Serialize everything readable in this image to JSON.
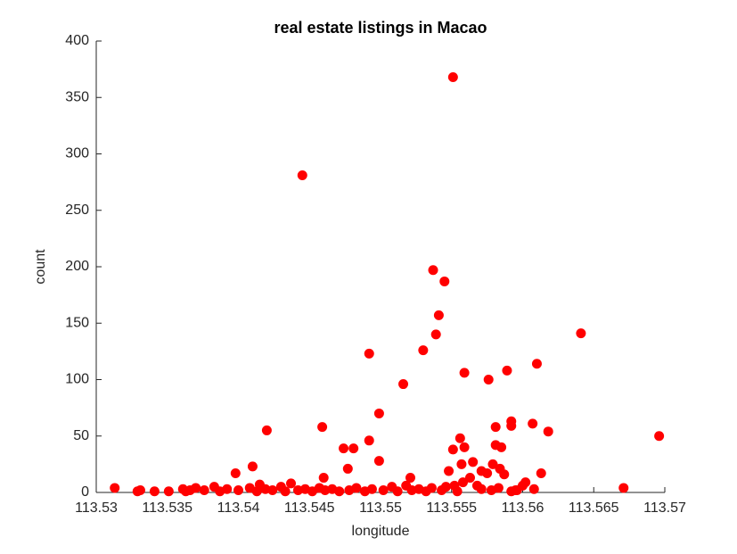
{
  "chart_data": {
    "type": "scatter",
    "title": "real estate listings in Macao",
    "x_label": "longitude",
    "y_label": "count",
    "color": "#ff0000",
    "grid": false,
    "xlim": [
      113.53,
      113.57
    ],
    "ylim": [
      0,
      400
    ],
    "xticks": [
      113.53,
      113.535,
      113.54,
      113.545,
      113.55,
      113.555,
      113.56,
      113.565,
      113.57
    ],
    "yticks": [
      0,
      50,
      100,
      150,
      200,
      250,
      300,
      350,
      400
    ],
    "x": [
      113.5313,
      113.5551,
      113.5445,
      113.5537,
      113.5545,
      113.5541,
      113.5539,
      113.553,
      113.5492,
      113.5516,
      113.5641,
      113.561,
      113.5589,
      113.5559,
      113.5576,
      113.5499,
      113.542,
      113.5459,
      113.5581,
      113.5592,
      113.5592,
      113.5607,
      113.5618,
      113.5696,
      113.5556,
      113.5492,
      113.5474,
      113.5481,
      113.5559,
      113.5581,
      113.5585,
      113.5551,
      113.5499,
      113.5477,
      113.5613,
      113.5398,
      113.541,
      113.546,
      113.5521,
      113.5548,
      113.5557,
      113.5565,
      113.5571,
      113.5575,
      113.5579,
      113.5584,
      113.5587,
      113.5558,
      113.5563,
      113.5568,
      113.5552,
      113.56,
      113.5602,
      113.5596,
      113.5671,
      113.5329,
      113.5331,
      113.5341,
      113.5351,
      113.5361,
      113.5363,
      113.5366,
      113.537,
      113.5376,
      113.5383,
      113.5387,
      113.5392,
      113.54,
      113.5408,
      113.5413,
      113.5415,
      113.5419,
      113.5424,
      113.543,
      113.5433,
      113.5437,
      113.5442,
      113.5447,
      113.5452,
      113.5457,
      113.5461,
      113.5466,
      113.5471,
      113.5478,
      113.5483,
      113.5489,
      113.5494,
      113.5502,
      113.5508,
      113.5512,
      113.5518,
      113.5522,
      113.5527,
      113.5532,
      113.5536,
      113.5543,
      113.5546,
      113.5554,
      113.5571,
      113.5578,
      113.5583,
      113.5592,
      113.5595,
      113.5608
    ],
    "values": [
      4,
      368,
      281,
      197,
      187,
      157,
      140,
      126,
      123,
      96,
      141,
      114,
      108,
      106,
      100,
      70,
      55,
      58,
      58,
      63,
      59,
      61,
      54,
      50,
      48,
      46,
      39,
      39,
      40,
      42,
      40,
      38,
      28,
      21,
      17,
      17,
      23,
      13,
      13,
      19,
      25,
      27,
      19,
      17,
      25,
      21,
      16,
      9,
      13,
      6,
      6,
      6,
      9,
      2,
      4,
      1,
      2,
      1,
      1,
      3,
      1,
      2,
      4,
      2,
      5,
      1,
      3,
      2,
      4,
      1,
      7,
      3,
      2,
      5,
      1,
      8,
      2,
      3,
      1,
      4,
      2,
      3,
      1,
      2,
      4,
      1,
      3,
      2,
      5,
      1,
      6,
      2,
      3,
      1,
      4,
      2,
      5,
      1,
      3,
      2,
      4,
      1,
      2,
      3
    ]
  }
}
